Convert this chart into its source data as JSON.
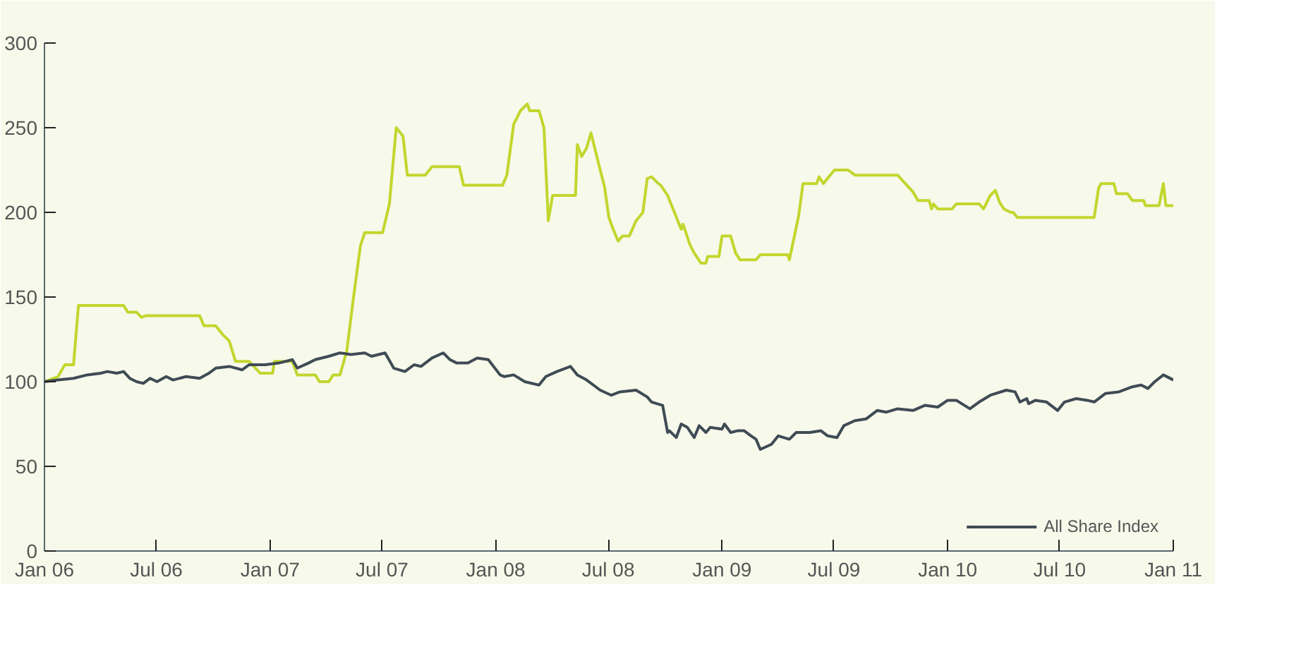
{
  "chart_data": {
    "type": "line",
    "xlim": [
      "2006-01-01",
      "2011-01-01"
    ],
    "ylim": [
      0,
      300
    ],
    "xticks": [
      {
        "value": "2006-01-01",
        "label": "Jan 06"
      },
      {
        "value": "2006-07-01",
        "label": "Jul 06"
      },
      {
        "value": "2007-01-01",
        "label": "Jan 07"
      },
      {
        "value": "2007-07-01",
        "label": "Jul 07"
      },
      {
        "value": "2008-01-01",
        "label": "Jan 08"
      },
      {
        "value": "2008-07-01",
        "label": "Jul 08"
      },
      {
        "value": "2009-01-01",
        "label": "Jan 09"
      },
      {
        "value": "2009-07-01",
        "label": "Jul 09"
      },
      {
        "value": "2010-01-01",
        "label": "Jan 10"
      },
      {
        "value": "2010-07-01",
        "label": "Jul 10"
      },
      {
        "value": "2011-01-01",
        "label": "Jan 11"
      }
    ],
    "yticks": [
      0,
      50,
      100,
      150,
      200,
      250,
      300
    ],
    "grid": false,
    "legend": "bottom right",
    "series": [
      {
        "color": "#c2d62e",
        "x": [
          "2006-01-01",
          "2006-01-23",
          "2006-02-03",
          "2006-02-17",
          "2006-02-25",
          "2006-05-09",
          "2006-05-16",
          "2006-05-30",
          "2006-06-07",
          "2006-06-14",
          "2006-09-09",
          "2006-09-16",
          "2006-10-05",
          "2006-10-16",
          "2006-10-27",
          "2006-11-06",
          "2006-11-28",
          "2006-12-16",
          "2007-01-05",
          "2007-01-08",
          "2007-02-06",
          "2007-02-14",
          "2007-03-15",
          "2007-03-22",
          "2007-04-06",
          "2007-04-13",
          "2007-04-24",
          "2007-05-05",
          "2007-05-16",
          "2007-05-27",
          "2007-06-03",
          "2007-07-02",
          "2007-07-13",
          "2007-07-24",
          "2007-08-04",
          "2007-08-11",
          "2007-09-09",
          "2007-09-20",
          "2007-11-03",
          "2007-11-10",
          "2008-01-12",
          "2008-01-19",
          "2008-01-30",
          "2008-02-10",
          "2008-02-21",
          "2008-02-25",
          "2008-03-11",
          "2008-03-19",
          "2008-03-26",
          "2008-04-02",
          "2008-05-09",
          "2008-05-12",
          "2008-05-19",
          "2008-05-27",
          "2008-06-03",
          "2008-06-18",
          "2008-06-25",
          "2008-07-02",
          "2008-07-09",
          "2008-07-17",
          "2008-07-24",
          "2008-08-04",
          "2008-08-15",
          "2008-08-26",
          "2008-09-02",
          "2008-09-09",
          "2008-09-20",
          "2008-09-24",
          "2008-10-05",
          "2008-10-16",
          "2008-10-27",
          "2008-10-30",
          "2008-11-10",
          "2008-11-17",
          "2008-11-28",
          "2008-12-06",
          "2008-12-09",
          "2008-12-27",
          "2009-01-01",
          "2009-01-15",
          "2009-01-23",
          "2009-01-30",
          "2009-02-25",
          "2009-03-04",
          "2009-04-17",
          "2009-04-20",
          "2009-05-05",
          "2009-05-12",
          "2009-06-03",
          "2009-06-07",
          "2009-06-14",
          "2009-06-25",
          "2009-07-02",
          "2009-07-24",
          "2009-08-04",
          "2009-10-12",
          "2009-11-06",
          "2009-11-14",
          "2009-12-02",
          "2009-12-06",
          "2009-12-09",
          "2009-12-16",
          "2010-01-08",
          "2010-01-15",
          "2010-02-21",
          "2010-02-28",
          "2010-03-11",
          "2010-03-19",
          "2010-03-26",
          "2010-04-02",
          "2010-04-13",
          "2010-04-17",
          "2010-04-24",
          "2010-08-26",
          "2010-09-02",
          "2010-09-06",
          "2010-09-27",
          "2010-10-01",
          "2010-10-19",
          "2010-10-27",
          "2010-11-14",
          "2010-11-17",
          "2010-12-09",
          "2010-12-16",
          "2010-12-20",
          "2011-01-01"
        ],
        "values": [
          100,
          103,
          110,
          110,
          145,
          145,
          141,
          141,
          138,
          139,
          139,
          133,
          133,
          128,
          124,
          112,
          112,
          105,
          105,
          112,
          112,
          104,
          104,
          100,
          100,
          104,
          104,
          118,
          150,
          180,
          188,
          188,
          205,
          250,
          245,
          222,
          222,
          227,
          227,
          216,
          216,
          222,
          252,
          260,
          264,
          260,
          260,
          250,
          195,
          210,
          210,
          240,
          233,
          238,
          247,
          225,
          215,
          197,
          190,
          183,
          186,
          186,
          195,
          200,
          220,
          221,
          217,
          216,
          210,
          200,
          190,
          193,
          181,
          176,
          170,
          170,
          174,
          174,
          186,
          186,
          176,
          172,
          172,
          175,
          175,
          172,
          198,
          217,
          217,
          221,
          217,
          222,
          225,
          225,
          222,
          222,
          212,
          207,
          207,
          202,
          205,
          202,
          202,
          205,
          205,
          202,
          210,
          213,
          206,
          202,
          200,
          200,
          197,
          197,
          214,
          217,
          217,
          211,
          211,
          207,
          207,
          204,
          204,
          217,
          204,
          204
        ]
      },
      {
        "name": "All Share Index",
        "color": "#3f4b55",
        "x": [
          "2006-01-01",
          "2006-01-23",
          "2006-02-17",
          "2006-03-11",
          "2006-04-02",
          "2006-04-13",
          "2006-04-28",
          "2006-05-09",
          "2006-05-19",
          "2006-05-30",
          "2006-06-10",
          "2006-06-21",
          "2006-07-02",
          "2006-07-17",
          "2006-07-28",
          "2006-08-18",
          "2006-09-09",
          "2006-09-24",
          "2006-10-05",
          "2006-10-27",
          "2006-11-17",
          "2006-11-28",
          "2006-12-24",
          "2007-01-15",
          "2007-02-06",
          "2007-02-14",
          "2007-03-04",
          "2007-03-15",
          "2007-04-06",
          "2007-04-24",
          "2007-05-12",
          "2007-06-03",
          "2007-06-14",
          "2007-07-06",
          "2007-07-20",
          "2007-08-07",
          "2007-08-22",
          "2007-09-02",
          "2007-09-20",
          "2007-10-08",
          "2007-10-19",
          "2007-10-30",
          "2007-11-17",
          "2007-12-02",
          "2007-12-20",
          "2008-01-08",
          "2008-01-15",
          "2008-01-30",
          "2008-02-17",
          "2008-03-11",
          "2008-03-22",
          "2008-04-09",
          "2008-05-01",
          "2008-05-12",
          "2008-05-27",
          "2008-06-18",
          "2008-07-06",
          "2008-07-20",
          "2008-08-15",
          "2008-09-02",
          "2008-09-09",
          "2008-09-27",
          "2008-10-05",
          "2008-10-08",
          "2008-10-19",
          "2008-10-27",
          "2008-11-06",
          "2008-11-17",
          "2008-11-25",
          "2008-12-06",
          "2008-12-13",
          "2009-01-01",
          "2009-01-05",
          "2009-01-15",
          "2009-01-26",
          "2009-02-06",
          "2009-02-17",
          "2009-02-25",
          "2009-03-04",
          "2009-03-22",
          "2009-04-02",
          "2009-04-20",
          "2009-05-01",
          "2009-05-23",
          "2009-06-10",
          "2009-06-21",
          "2009-07-06",
          "2009-07-17",
          "2009-08-04",
          "2009-08-22",
          "2009-09-09",
          "2009-09-24",
          "2009-10-12",
          "2009-11-06",
          "2009-11-25",
          "2009-12-16",
          "2010-01-01",
          "2010-01-15",
          "2010-02-06",
          "2010-02-21",
          "2010-03-11",
          "2010-04-06",
          "2010-04-20",
          "2010-04-28",
          "2010-05-09",
          "2010-05-12",
          "2010-05-23",
          "2010-06-10",
          "2010-06-28",
          "2010-07-09",
          "2010-07-28",
          "2010-08-15",
          "2010-08-26",
          "2010-09-13",
          "2010-10-05",
          "2010-10-27",
          "2010-11-10",
          "2010-11-21",
          "2010-12-02",
          "2010-12-16",
          "2011-01-01"
        ],
        "values": [
          100,
          101,
          102,
          104,
          105,
          106,
          105,
          106,
          102,
          100,
          99,
          102,
          100,
          103,
          101,
          103,
          102,
          105,
          108,
          109,
          107,
          110,
          110,
          111,
          113,
          108,
          111,
          113,
          115,
          117,
          116,
          117,
          115,
          117,
          108,
          106,
          110,
          109,
          114,
          117,
          113,
          111,
          111,
          114,
          113,
          104,
          103,
          104,
          100,
          98,
          103,
          106,
          109,
          104,
          101,
          95,
          92,
          94,
          95,
          91,
          88,
          86,
          70,
          71,
          67,
          75,
          73,
          67,
          74,
          70,
          73,
          72,
          75,
          70,
          71,
          71,
          68,
          66,
          60,
          63,
          68,
          66,
          70,
          70,
          71,
          68,
          67,
          74,
          77,
          78,
          83,
          82,
          84,
          83,
          86,
          85,
          89,
          89,
          84,
          88,
          92,
          95,
          94,
          88,
          90,
          87,
          89,
          88,
          83,
          88,
          90,
          89,
          88,
          93,
          94,
          97,
          98,
          96,
          100,
          104,
          101
        ]
      }
    ]
  }
}
